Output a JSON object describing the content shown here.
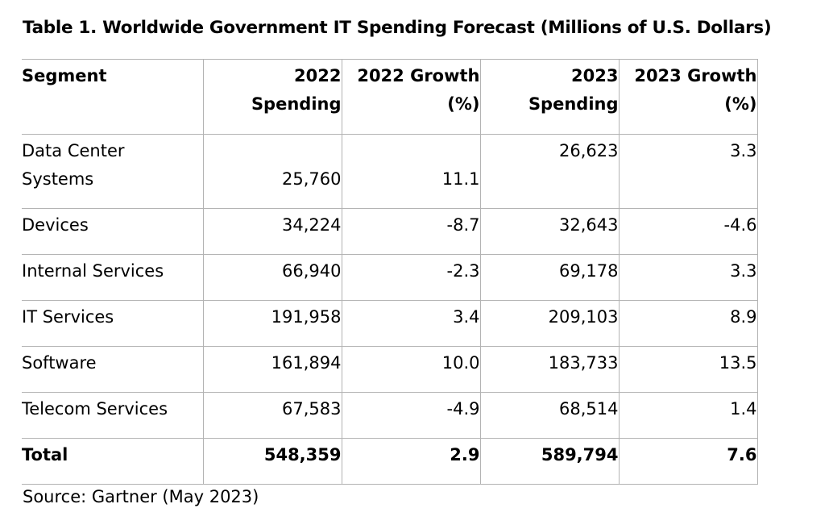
{
  "title": "Table 1. Worldwide Government IT Spending Forecast (Millions of U.S. Dollars)",
  "headers": {
    "segment": "Segment",
    "spend_2022": [
      "2022",
      "Spending"
    ],
    "growth_2022": [
      "2022 Growth",
      "(%)"
    ],
    "spend_2023": [
      "2023",
      "Spending"
    ],
    "growth_2023": [
      "2023 Growth",
      "(%)"
    ]
  },
  "rows": [
    {
      "segment": [
        "Data Center",
        "Systems"
      ],
      "spend_2022": "25,760",
      "growth_2022": "11.1",
      "spend_2023": "26,623",
      "growth_2023": "3.3"
    },
    {
      "segment": "Devices",
      "spend_2022": "34,224",
      "growth_2022": "-8.7",
      "spend_2023": "32,643",
      "growth_2023": "-4.6"
    },
    {
      "segment": "Internal Services",
      "spend_2022": "66,940",
      "growth_2022": "-2.3",
      "spend_2023": "69,178",
      "growth_2023": "3.3"
    },
    {
      "segment": "IT Services",
      "spend_2022": "191,958",
      "growth_2022": "3.4",
      "spend_2023": "209,103",
      "growth_2023": "8.9"
    },
    {
      "segment": "Software",
      "spend_2022": "161,894",
      "growth_2022": "10.0",
      "spend_2023": "183,733",
      "growth_2023": "13.5"
    },
    {
      "segment": "Telecom Services",
      "spend_2022": "67,583",
      "growth_2022": "-4.9",
      "spend_2023": "68,514",
      "growth_2023": "1.4"
    }
  ],
  "total": {
    "segment": "Total",
    "spend_2022": "548,359",
    "growth_2022": "2.9",
    "spend_2023": "589,794",
    "growth_2023": "7.6"
  },
  "source": "Source: Gartner (May 2023)"
}
